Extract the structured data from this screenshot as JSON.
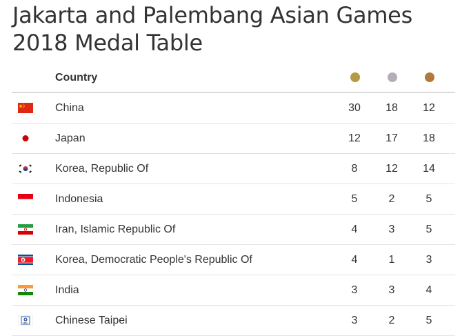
{
  "title": "Jakarta and Palembang Asian Games 2018 Medal Table",
  "header": {
    "country_label": "Country"
  },
  "colors": {
    "gold": "#b59a44",
    "silver": "#b5aeb9",
    "bronze": "#b07a3c",
    "divider": "#e3e3e3"
  },
  "rows": [
    {
      "country": "China",
      "flag": "china-flag-icon",
      "gold": "30",
      "silver": "18",
      "bronze": "12"
    },
    {
      "country": "Japan",
      "flag": "japan-flag-icon",
      "gold": "12",
      "silver": "17",
      "bronze": "18"
    },
    {
      "country": "Korea, Republic Of",
      "flag": "south-korea-flag-icon",
      "gold": "8",
      "silver": "12",
      "bronze": "14"
    },
    {
      "country": "Indonesia",
      "flag": "indonesia-flag-icon",
      "gold": "5",
      "silver": "2",
      "bronze": "5"
    },
    {
      "country": "Iran, Islamic Republic Of",
      "flag": "iran-flag-icon",
      "gold": "4",
      "silver": "3",
      "bronze": "5"
    },
    {
      "country": "Korea, Democratic People's Republic Of",
      "flag": "north-korea-flag-icon",
      "gold": "4",
      "silver": "1",
      "bronze": "3"
    },
    {
      "country": "India",
      "flag": "india-flag-icon",
      "gold": "3",
      "silver": "3",
      "bronze": "4"
    },
    {
      "country": "Chinese Taipei",
      "flag": "chinese-taipei-flag-icon",
      "gold": "3",
      "silver": "2",
      "bronze": "5"
    }
  ]
}
